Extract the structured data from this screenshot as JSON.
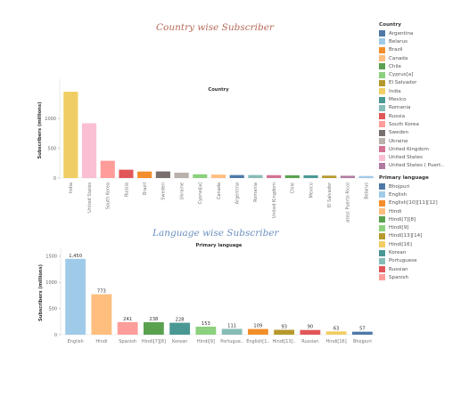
{
  "dashboard": {
    "title_country": "Country wise Subscriber",
    "title_language": "Language wise Subscriber"
  },
  "legend_country": {
    "title": "Country",
    "items": [
      {
        "label": "Argentina",
        "color": "#4e79a7"
      },
      {
        "label": "Belarus",
        "color": "#a0cbe8"
      },
      {
        "label": "Brazil",
        "color": "#f28e2b"
      },
      {
        "label": "Canada",
        "color": "#ffbe7d"
      },
      {
        "label": "Chile",
        "color": "#59a14f"
      },
      {
        "label": "Cyprus[a]",
        "color": "#8cd17d"
      },
      {
        "label": "El Salvador",
        "color": "#b6992d"
      },
      {
        "label": "India",
        "color": "#f1ce63"
      },
      {
        "label": "Mexico",
        "color": "#499894"
      },
      {
        "label": "Romania",
        "color": "#86bcb6"
      },
      {
        "label": "Russia",
        "color": "#e15759"
      },
      {
        "label": "South Korea",
        "color": "#ff9d9a"
      },
      {
        "label": "Sweden",
        "color": "#79706e"
      },
      {
        "label": "Ukraine",
        "color": "#bab0ac"
      },
      {
        "label": "United Kingdom",
        "color": "#d37295"
      },
      {
        "label": "United States",
        "color": "#fabfd2"
      },
      {
        "label": "United States ( Puert..",
        "color": "#b07aa1"
      }
    ]
  },
  "legend_language": {
    "title": "Primary language",
    "items": [
      {
        "label": "Bhojpuri",
        "color": "#4e79a7"
      },
      {
        "label": "English",
        "color": "#a0cbe8"
      },
      {
        "label": "English[10][11][12]",
        "color": "#f28e2b"
      },
      {
        "label": "Hindi",
        "color": "#ffbe7d"
      },
      {
        "label": "Hindi[7][8]",
        "color": "#59a14f"
      },
      {
        "label": "Hindi[9]",
        "color": "#8cd17d"
      },
      {
        "label": "Hindi[13][14]",
        "color": "#b6992d"
      },
      {
        "label": "Hindi[16]",
        "color": "#f1ce63"
      },
      {
        "label": "Korean",
        "color": "#499894"
      },
      {
        "label": "Portuguese",
        "color": "#86bcb6"
      },
      {
        "label": "Russian",
        "color": "#e15759"
      },
      {
        "label": "Spanish",
        "color": "#ff9d9a"
      }
    ]
  },
  "chart_data": [
    {
      "type": "bar",
      "title": "Country",
      "ylabel": "Subscribers (millions)",
      "ylim": [
        0,
        1600
      ],
      "yticks": [
        0,
        500,
        1000
      ],
      "grid": false,
      "legend": "right",
      "show_value_labels": false,
      "categories": [
        "India",
        "United States",
        "South Korea",
        "Russia",
        "Brazil",
        "Sweden",
        "Ukraine",
        "Cyprus[a]",
        "Canada",
        "Argentina",
        "Romania",
        "United Kingdom",
        "Chile",
        "Mexico",
        "El Salvador",
        "United States( Puerto Rico)",
        "Belarus"
      ],
      "values": [
        1450,
        920,
        290,
        140,
        109,
        111,
        90,
        63,
        57,
        50,
        50,
        48,
        45,
        45,
        40,
        38,
        34
      ],
      "colors": [
        "#f1ce63",
        "#fabfd2",
        "#ff9d9a",
        "#e15759",
        "#f28e2b",
        "#79706e",
        "#bab0ac",
        "#8cd17d",
        "#ffbe7d",
        "#4e79a7",
        "#86bcb6",
        "#d37295",
        "#59a14f",
        "#499894",
        "#b6992d",
        "#b07aa1",
        "#a0cbe8"
      ]
    },
    {
      "type": "bar",
      "title": "Primary language",
      "ylabel": "Subscribers (millions)",
      "ylim": [
        0,
        1600
      ],
      "yticks": [
        0,
        500,
        1000,
        1500
      ],
      "grid": false,
      "legend": "right",
      "show_value_labels": true,
      "categories": [
        "English",
        "Hindi",
        "Spanish",
        "Hindi[7][8]",
        "Korean",
        "Hindi[9]",
        "Portugue..",
        "English[1..",
        "Hindi[13]..",
        "Russian",
        "Hindi[16]",
        "Bhojpuri"
      ],
      "values": [
        1450,
        773,
        241,
        238,
        228,
        153,
        111,
        109,
        93,
        90,
        63,
        57
      ],
      "colors": [
        "#a0cbe8",
        "#ffbe7d",
        "#ff9d9a",
        "#59a14f",
        "#499894",
        "#8cd17d",
        "#86bcb6",
        "#f28e2b",
        "#b6992d",
        "#e15759",
        "#f1ce63",
        "#4e79a7"
      ]
    }
  ]
}
